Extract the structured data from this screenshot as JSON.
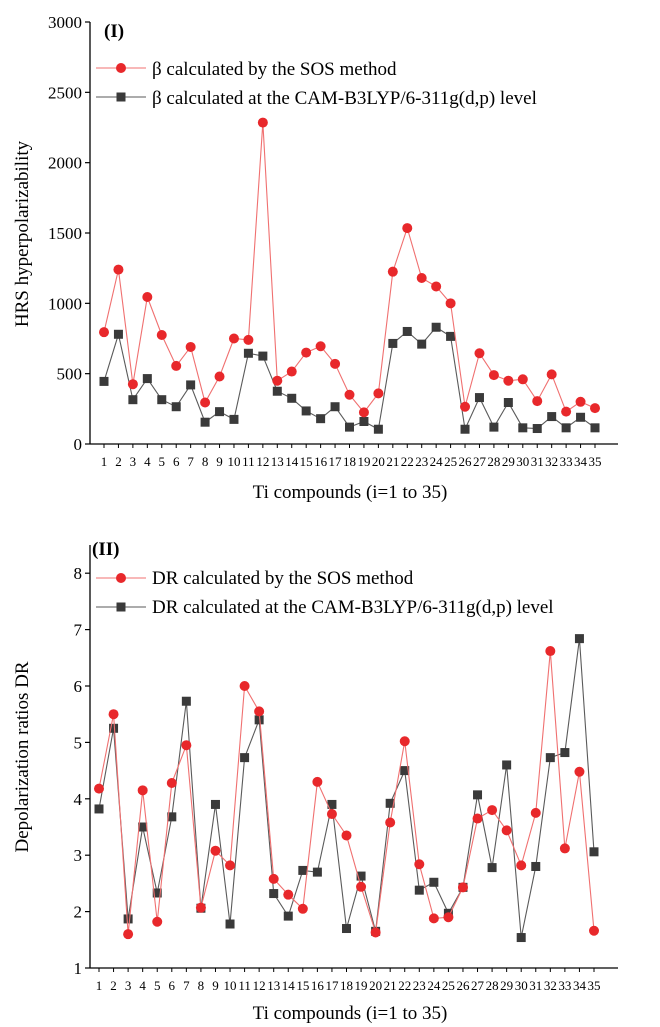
{
  "colors": {
    "sos": "#e8282b",
    "sos_line": "#f07070",
    "cam": "#3a3a3a",
    "cam_line": "#5a5a5a",
    "axis": "#000000"
  },
  "chart_data": [
    {
      "type": "line",
      "panel_label": "(I)",
      "xlabel": "Ti compounds (i=1 to 35)",
      "ylabel": "HRS hyperpolarizability",
      "ylim": [
        0,
        3000
      ],
      "yticks": [
        0,
        500,
        1000,
        1500,
        2000,
        2500,
        3000
      ],
      "categories": [
        "1",
        "2",
        "3",
        "4",
        "5",
        "6",
        "7",
        "8",
        "9",
        "10",
        "11",
        "12",
        "13",
        "14",
        "15",
        "16",
        "17",
        "18",
        "19",
        "20",
        "21",
        "22",
        "23",
        "24",
        "25",
        "26",
        "27",
        "28",
        "29",
        "30",
        "31",
        "32",
        "33",
        "34",
        "35"
      ],
      "legend_position": "top-left",
      "grid": false,
      "series": [
        {
          "name": "β calculated by the SOS method",
          "marker": "circle",
          "values": [
            795,
            1240,
            425,
            1045,
            775,
            555,
            690,
            295,
            480,
            750,
            740,
            2285,
            450,
            515,
            650,
            695,
            570,
            350,
            225,
            360,
            1225,
            1535,
            1180,
            1120,
            1000,
            265,
            645,
            490,
            450,
            460,
            305,
            495,
            230,
            300,
            255
          ]
        },
        {
          "name": "β calculated at the CAM-B3LYP/6-311g(d,p) level",
          "marker": "square",
          "values": [
            445,
            780,
            315,
            465,
            315,
            265,
            420,
            155,
            230,
            175,
            645,
            625,
            375,
            325,
            235,
            180,
            265,
            120,
            160,
            105,
            715,
            800,
            710,
            830,
            765,
            105,
            330,
            120,
            295,
            115,
            110,
            195,
            115,
            190,
            115
          ]
        }
      ]
    },
    {
      "type": "line",
      "panel_label": "(II)",
      "xlabel": "Ti compounds (i=1 to 35)",
      "ylabel": "Depolarization ratios DR",
      "ylim": [
        1,
        8.5
      ],
      "yticks": [
        1,
        2,
        3,
        4,
        5,
        6,
        7,
        8
      ],
      "categories": [
        "1",
        "2",
        "3",
        "4",
        "5",
        "6",
        "7",
        "8",
        "9",
        "10",
        "11",
        "12",
        "13",
        "14",
        "15",
        "16",
        "17",
        "18",
        "19",
        "20",
        "21",
        "22",
        "23",
        "24",
        "25",
        "26",
        "27",
        "28",
        "29",
        "30",
        "31",
        "32",
        "33",
        "34",
        "35"
      ],
      "legend_position": "top-left",
      "grid": false,
      "series": [
        {
          "name": "DR calculated by the SOS method",
          "marker": "circle",
          "values": [
            4.18,
            5.5,
            1.6,
            4.15,
            1.82,
            4.28,
            4.95,
            2.07,
            3.08,
            2.82,
            6.0,
            5.55,
            2.58,
            2.3,
            2.05,
            4.3,
            3.73,
            3.35,
            2.44,
            1.63,
            3.58,
            5.02,
            2.84,
            1.88,
            1.9,
            2.43,
            3.65,
            3.8,
            3.44,
            2.82,
            3.75,
            6.62,
            3.12,
            4.48,
            1.66
          ]
        },
        {
          "name": "DR calculated at the CAM-B3LYP/6-311g(d,p) level",
          "marker": "square",
          "values": [
            3.82,
            5.25,
            1.87,
            3.5,
            2.33,
            3.68,
            5.73,
            2.06,
            3.9,
            1.78,
            4.73,
            5.4,
            2.32,
            1.92,
            2.73,
            2.7,
            3.9,
            1.7,
            2.63,
            1.65,
            3.92,
            4.5,
            2.38,
            2.52,
            1.97,
            2.43,
            4.07,
            2.78,
            4.6,
            1.54,
            2.8,
            4.73,
            4.82,
            6.84,
            3.06
          ]
        }
      ]
    }
  ]
}
